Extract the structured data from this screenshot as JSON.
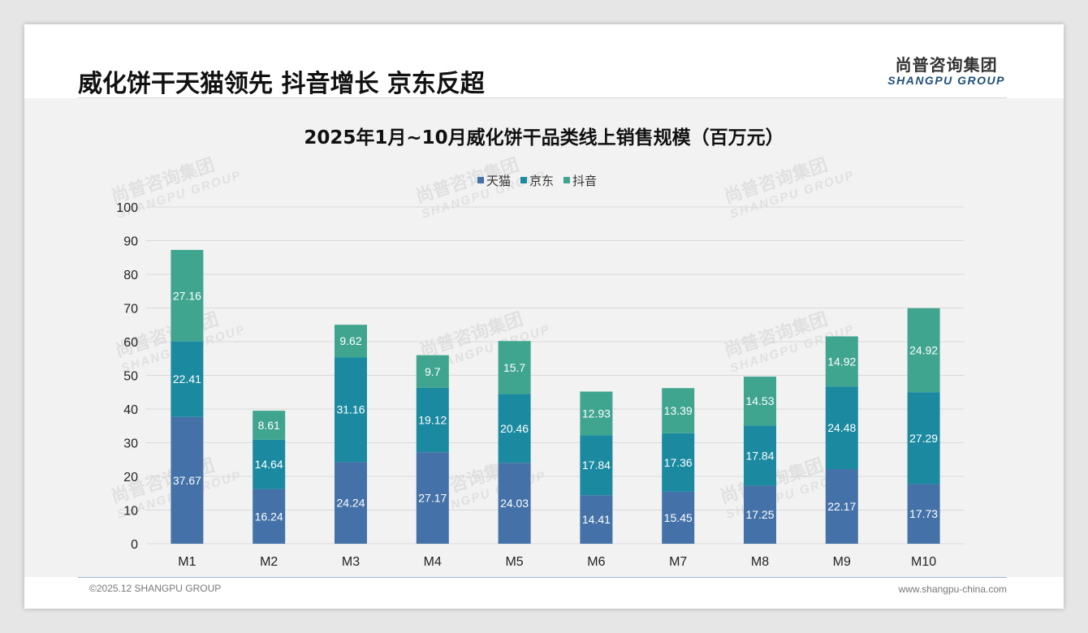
{
  "header": {
    "headline": "威化饼干天猫领先 抖音增长 京东反超"
  },
  "logo": {
    "cn": "尚普咨询集团",
    "en": "SHANGPU GROUP"
  },
  "watermark": {
    "cn": "尚普咨询集团",
    "en": "SHANGPU GROUP"
  },
  "footer": {
    "copyright": "©2025.12 SHANGPU GROUP",
    "website": "www.shangpu-china.com"
  },
  "chart_data": {
    "type": "bar",
    "stacked": true,
    "title": "2025年1月~10月威化饼干品类线上销售规模（百万元）",
    "xlabel": "",
    "ylabel": "",
    "ylim": [
      0,
      100
    ],
    "yticks": [
      0,
      10,
      20,
      30,
      40,
      50,
      60,
      70,
      80,
      90,
      100
    ],
    "grid": true,
    "legend_position": "top-center",
    "categories": [
      "M1",
      "M2",
      "M3",
      "M4",
      "M5",
      "M6",
      "M7",
      "M8",
      "M9",
      "M10"
    ],
    "series": [
      {
        "name": "天猫",
        "color": "#4472a8",
        "values": [
          37.67,
          16.24,
          24.24,
          27.17,
          24.03,
          14.41,
          15.45,
          17.25,
          22.17,
          17.73
        ]
      },
      {
        "name": "京东",
        "color": "#1b8aa0",
        "values": [
          22.41,
          14.64,
          31.16,
          19.12,
          20.46,
          17.84,
          17.36,
          17.84,
          24.48,
          27.29
        ]
      },
      {
        "name": "抖音",
        "color": "#40a58f",
        "values": [
          27.16,
          8.61,
          9.62,
          9.7,
          15.7,
          12.93,
          13.39,
          14.53,
          14.92,
          24.92
        ]
      }
    ]
  }
}
